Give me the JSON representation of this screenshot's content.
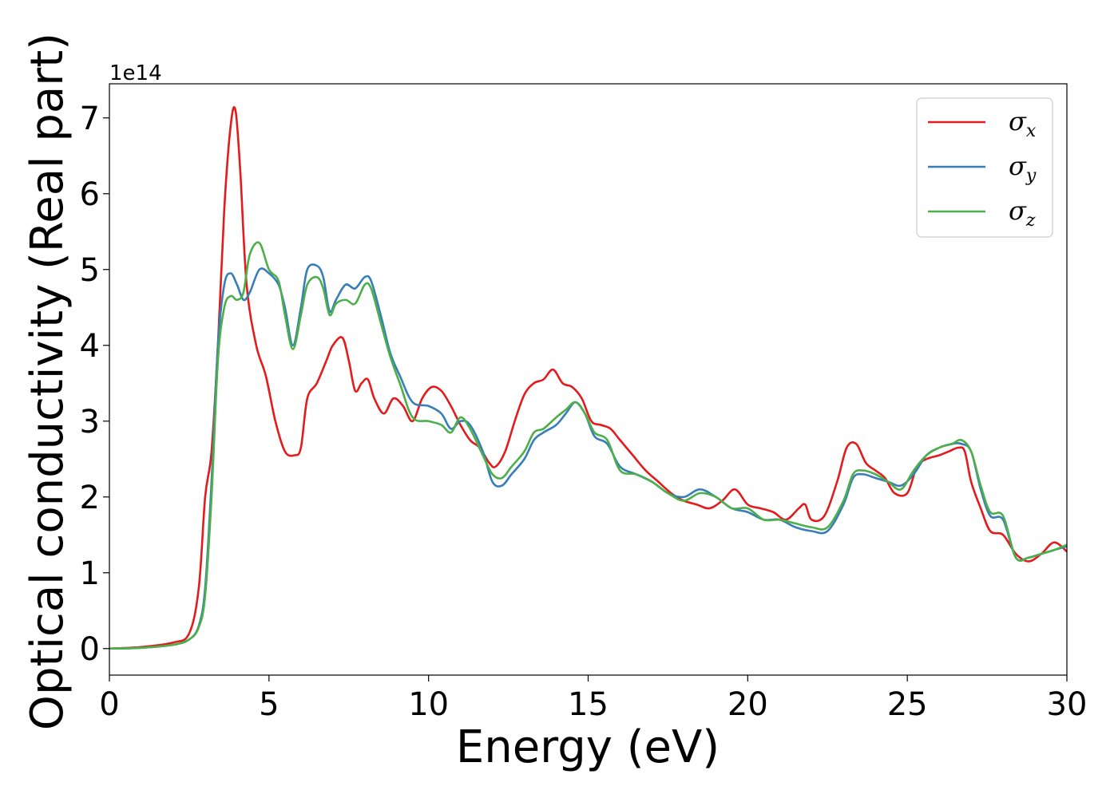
{
  "chart_data": {
    "type": "line",
    "xlabel": "Energy (eV)",
    "ylabel": "Optical conductivity (Real part)",
    "y_offset_label": "1e14",
    "xlim": [
      0,
      30
    ],
    "ylim": [
      -0.35,
      7.45
    ],
    "x_ticks": [
      0,
      5,
      10,
      15,
      20,
      25,
      30
    ],
    "x_tick_labels": [
      "0",
      "5",
      "10",
      "15",
      "20",
      "25",
      "30"
    ],
    "y_ticks": [
      0,
      1,
      2,
      3,
      4,
      5,
      6,
      7
    ],
    "y_tick_labels": [
      "0",
      "1",
      "2",
      "3",
      "4",
      "5",
      "6",
      "7"
    ],
    "grid": false,
    "legend_position": "top-right",
    "series": [
      {
        "name": "σx",
        "symbol": "σ",
        "subscript": "x",
        "color": "#e41a1c",
        "x": [
          0,
          1,
          2,
          2.5,
          2.8,
          3.0,
          3.2,
          3.4,
          3.6,
          3.8,
          3.95,
          4.1,
          4.3,
          4.6,
          4.9,
          5.2,
          5.5,
          5.8,
          6.0,
          6.2,
          6.5,
          6.8,
          7.0,
          7.3,
          7.5,
          7.7,
          7.9,
          8.1,
          8.3,
          8.6,
          8.9,
          9.2,
          9.5,
          9.8,
          10.1,
          10.4,
          10.7,
          11.0,
          11.3,
          11.6,
          11.9,
          12.1,
          12.4,
          12.7,
          13.0,
          13.3,
          13.6,
          13.9,
          14.2,
          14.5,
          14.8,
          15.1,
          15.4,
          15.7,
          16.0,
          16.4,
          16.8,
          17.2,
          17.6,
          18.0,
          18.4,
          18.8,
          19.2,
          19.6,
          20.0,
          20.4,
          20.8,
          21.2,
          21.6,
          21.8,
          22.0,
          22.4,
          22.8,
          23.1,
          23.4,
          23.7,
          24.0,
          24.3,
          24.6,
          25.0,
          25.3,
          25.6,
          26.0,
          26.3,
          26.6,
          26.8,
          27.0,
          27.3,
          27.6,
          28.0,
          28.4,
          28.8,
          29.2,
          29.6,
          30.0
        ],
        "y": [
          0,
          0.02,
          0.08,
          0.2,
          0.8,
          2.0,
          2.6,
          4.0,
          5.8,
          6.9,
          7.1,
          6.3,
          4.8,
          4.0,
          3.6,
          3.0,
          2.6,
          2.55,
          2.65,
          3.3,
          3.5,
          3.8,
          4.0,
          4.1,
          3.8,
          3.4,
          3.5,
          3.55,
          3.3,
          3.1,
          3.3,
          3.2,
          3.0,
          3.3,
          3.45,
          3.4,
          3.2,
          2.95,
          2.75,
          2.65,
          2.45,
          2.4,
          2.6,
          3.0,
          3.35,
          3.5,
          3.55,
          3.68,
          3.5,
          3.45,
          3.3,
          3.0,
          2.95,
          2.9,
          2.75,
          2.55,
          2.35,
          2.2,
          2.05,
          1.95,
          1.9,
          1.85,
          1.95,
          2.1,
          1.9,
          1.85,
          1.8,
          1.7,
          1.85,
          1.9,
          1.7,
          1.75,
          2.2,
          2.65,
          2.7,
          2.45,
          2.35,
          2.25,
          2.05,
          2.05,
          2.4,
          2.5,
          2.55,
          2.6,
          2.65,
          2.6,
          2.2,
          1.85,
          1.55,
          1.5,
          1.25,
          1.15,
          1.25,
          1.4,
          1.28
        ]
      },
      {
        "name": "σy",
        "symbol": "σ",
        "subscript": "y",
        "color": "#377eb8",
        "x": [
          0,
          1,
          2,
          2.5,
          2.8,
          3.0,
          3.2,
          3.4,
          3.6,
          3.8,
          4.0,
          4.2,
          4.4,
          4.7,
          5.0,
          5.3,
          5.5,
          5.75,
          6.0,
          6.2,
          6.5,
          6.7,
          6.9,
          7.1,
          7.4,
          7.7,
          8.0,
          8.2,
          8.5,
          8.8,
          9.1,
          9.5,
          10.0,
          10.4,
          10.7,
          11.0,
          11.3,
          11.7,
          12.0,
          12.3,
          12.6,
          13.0,
          13.3,
          13.6,
          14.0,
          14.3,
          14.6,
          14.9,
          15.2,
          15.6,
          16.0,
          16.5,
          17.0,
          17.5,
          18.0,
          18.5,
          19.0,
          19.5,
          20.0,
          20.5,
          21.0,
          21.5,
          22.0,
          22.5,
          23.0,
          23.3,
          23.6,
          24.0,
          24.4,
          24.8,
          25.2,
          25.6,
          26.0,
          26.4,
          26.7,
          27.0,
          27.3,
          27.6,
          28.0,
          28.4,
          28.8,
          29.2,
          29.6,
          30.0
        ],
        "y": [
          0,
          0.01,
          0.05,
          0.12,
          0.3,
          0.8,
          2.2,
          4.0,
          4.8,
          4.95,
          4.8,
          4.6,
          4.7,
          5.0,
          4.95,
          4.8,
          4.5,
          4.0,
          4.5,
          5.0,
          5.05,
          4.9,
          4.45,
          4.6,
          4.8,
          4.75,
          4.9,
          4.85,
          4.4,
          3.9,
          3.6,
          3.25,
          3.2,
          3.1,
          2.9,
          3.0,
          2.95,
          2.6,
          2.2,
          2.15,
          2.3,
          2.5,
          2.75,
          2.85,
          2.95,
          3.1,
          3.25,
          3.1,
          2.8,
          2.7,
          2.4,
          2.3,
          2.2,
          2.05,
          2.0,
          2.1,
          2.0,
          1.85,
          1.8,
          1.7,
          1.7,
          1.6,
          1.55,
          1.55,
          1.9,
          2.25,
          2.3,
          2.25,
          2.2,
          2.15,
          2.3,
          2.55,
          2.65,
          2.7,
          2.7,
          2.6,
          2.1,
          1.75,
          1.7,
          1.2,
          1.2,
          1.25,
          1.3,
          1.35
        ]
      },
      {
        "name": "σz",
        "symbol": "σ",
        "subscript": "z",
        "color": "#4daf4a",
        "x": [
          0,
          1,
          2,
          2.5,
          2.8,
          3.0,
          3.2,
          3.4,
          3.6,
          3.8,
          4.0,
          4.2,
          4.4,
          4.7,
          5.0,
          5.3,
          5.5,
          5.75,
          6.0,
          6.2,
          6.5,
          6.7,
          6.9,
          7.1,
          7.4,
          7.7,
          8.0,
          8.2,
          8.5,
          8.8,
          9.1,
          9.5,
          10.0,
          10.4,
          10.7,
          11.0,
          11.3,
          11.7,
          12.0,
          12.3,
          12.6,
          13.0,
          13.3,
          13.6,
          14.0,
          14.3,
          14.6,
          14.9,
          15.2,
          15.6,
          16.0,
          16.5,
          17.0,
          17.5,
          18.0,
          18.5,
          19.0,
          19.5,
          20.0,
          20.5,
          21.0,
          21.5,
          22.0,
          22.5,
          23.0,
          23.3,
          23.6,
          24.0,
          24.4,
          24.8,
          25.2,
          25.6,
          26.0,
          26.4,
          26.7,
          27.0,
          27.3,
          27.6,
          28.0,
          28.4,
          28.8,
          29.2,
          29.6,
          30.0
        ],
        "y": [
          0,
          0.01,
          0.05,
          0.12,
          0.28,
          0.7,
          2.0,
          3.8,
          4.5,
          4.65,
          4.6,
          4.7,
          5.2,
          5.35,
          5.0,
          4.85,
          4.4,
          3.95,
          4.4,
          4.8,
          4.9,
          4.75,
          4.4,
          4.55,
          4.6,
          4.55,
          4.8,
          4.75,
          4.3,
          3.85,
          3.5,
          3.05,
          3.0,
          2.95,
          2.85,
          3.05,
          2.9,
          2.55,
          2.3,
          2.25,
          2.4,
          2.6,
          2.85,
          2.9,
          3.05,
          3.15,
          3.25,
          3.1,
          2.85,
          2.75,
          2.35,
          2.3,
          2.2,
          2.05,
          1.95,
          2.05,
          2.0,
          1.85,
          1.85,
          1.7,
          1.7,
          1.65,
          1.6,
          1.6,
          1.95,
          2.3,
          2.35,
          2.3,
          2.2,
          2.1,
          2.35,
          2.55,
          2.65,
          2.7,
          2.75,
          2.6,
          2.15,
          1.8,
          1.75,
          1.2,
          1.2,
          1.25,
          1.3,
          1.37
        ]
      }
    ]
  }
}
